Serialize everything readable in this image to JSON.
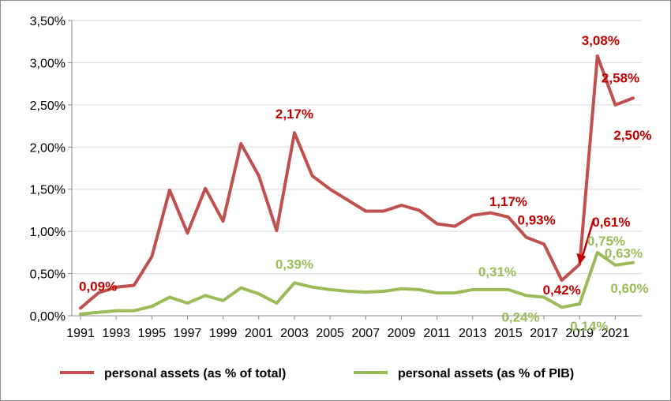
{
  "chart_data": {
    "type": "line",
    "x": [
      1991,
      1992,
      1993,
      1994,
      1995,
      1996,
      1997,
      1998,
      1999,
      2000,
      2001,
      2002,
      2003,
      2004,
      2005,
      2006,
      2007,
      2008,
      2009,
      2010,
      2011,
      2012,
      2013,
      2014,
      2015,
      2016,
      2017,
      2018,
      2019,
      2020,
      2021,
      2022
    ],
    "x_tick_labels": [
      "1991",
      "1993",
      "1995",
      "1997",
      "1999",
      "2001",
      "2003",
      "2005",
      "2007",
      "2009",
      "2011",
      "2013",
      "2015",
      "2017",
      "2019",
      "2021"
    ],
    "y_tick_labels": [
      "0,00%",
      "0,50%",
      "1,00%",
      "1,50%",
      "2,00%",
      "2,50%",
      "3,00%",
      "3,50%"
    ],
    "ylim": [
      0,
      3.5
    ],
    "grid": "horizontal",
    "legend_position": "bottom",
    "series": [
      {
        "name": "personal assets (as % of total)",
        "color": "#c0504d",
        "values": [
          0.09,
          0.27,
          0.34,
          0.36,
          0.7,
          1.49,
          0.98,
          1.51,
          1.12,
          2.04,
          1.66,
          1.01,
          2.17,
          1.66,
          1.5,
          1.37,
          1.24,
          1.24,
          1.31,
          1.25,
          1.09,
          1.06,
          1.19,
          1.22,
          1.17,
          0.93,
          0.85,
          0.42,
          0.61,
          3.08,
          2.5,
          2.58
        ]
      },
      {
        "name": "personal assets (as % of PIB)",
        "color": "#9bbb59",
        "values": [
          0.02,
          0.04,
          0.06,
          0.06,
          0.11,
          0.22,
          0.15,
          0.24,
          0.18,
          0.33,
          0.26,
          0.15,
          0.39,
          0.34,
          0.31,
          0.29,
          0.28,
          0.29,
          0.32,
          0.31,
          0.27,
          0.27,
          0.31,
          0.31,
          0.31,
          0.24,
          0.22,
          0.1,
          0.14,
          0.75,
          0.6,
          0.63
        ]
      }
    ],
    "annotations": [
      {
        "text": "0,09%",
        "series": 0,
        "x": 1991
      },
      {
        "text": "2,17%",
        "series": 0,
        "x": 2003
      },
      {
        "text": "1,17%",
        "series": 0,
        "x": 2015
      },
      {
        "text": "0,93%",
        "series": 0,
        "x": 2016
      },
      {
        "text": "0,42%",
        "series": 0,
        "x": 2018
      },
      {
        "text": "0,61%",
        "series": 0,
        "x": 2019
      },
      {
        "text": "3,08%",
        "series": 0,
        "x": 2020
      },
      {
        "text": "2,50%",
        "series": 0,
        "x": 2021
      },
      {
        "text": "2,58%",
        "series": 0,
        "x": 2022
      },
      {
        "text": "0,39%",
        "series": 1,
        "x": 2003
      },
      {
        "text": "0,31%",
        "series": 1,
        "x": 2015
      },
      {
        "text": "0,24%",
        "series": 1,
        "x": 2016
      },
      {
        "text": "0,14%",
        "series": 1,
        "x": 2019
      },
      {
        "text": "0,75%",
        "series": 1,
        "x": 2020
      },
      {
        "text": "0,60%",
        "series": 1,
        "x": 2021
      },
      {
        "text": "0,63%",
        "series": 1,
        "x": 2022
      }
    ],
    "label_colors": [
      "#c00000",
      "#9bbb59"
    ]
  }
}
